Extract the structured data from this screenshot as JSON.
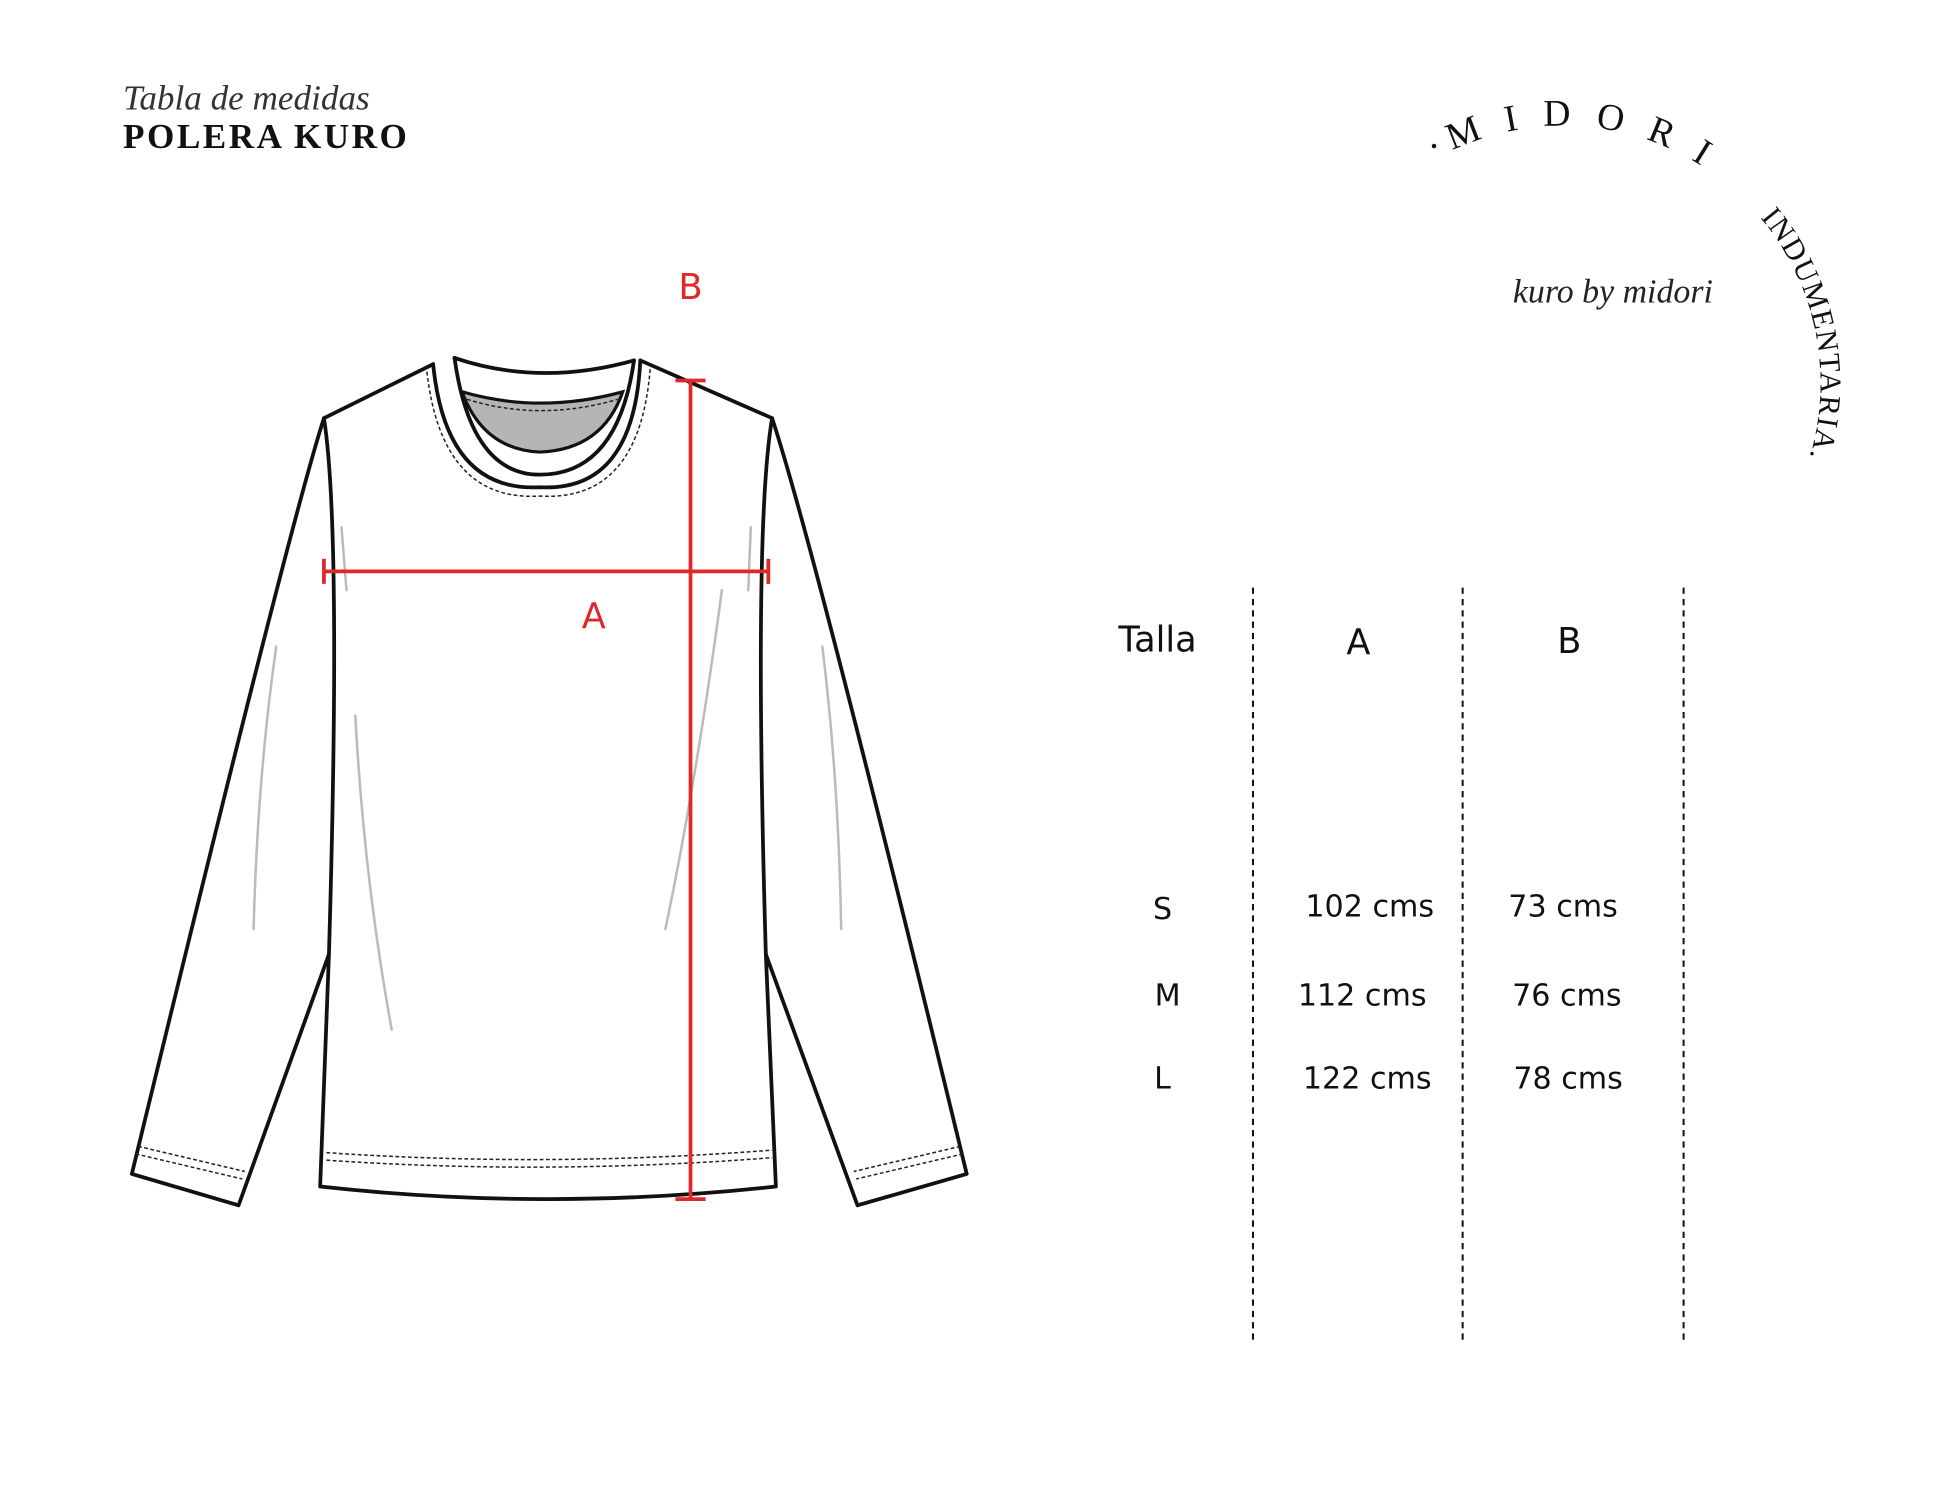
{
  "header": {
    "subtitle": "Tabla de medidas",
    "title": "POLERA KURO"
  },
  "logo": {
    "arc_text": "·M I D O R I  INDUMENTARIA.",
    "tagline": "kuro by midori"
  },
  "diagram": {
    "label_a": "A",
    "label_b": "B",
    "accent_color": "#e02828"
  },
  "table": {
    "headers": [
      "Talla",
      "A",
      "B"
    ],
    "rows": [
      {
        "size": "S",
        "a": "102 cms",
        "b": "73 cms"
      },
      {
        "size": "M",
        "a": "112 cms",
        "b": "76 cms"
      },
      {
        "size": "L",
        "a": "122 cms",
        "b": "78 cms"
      }
    ]
  }
}
